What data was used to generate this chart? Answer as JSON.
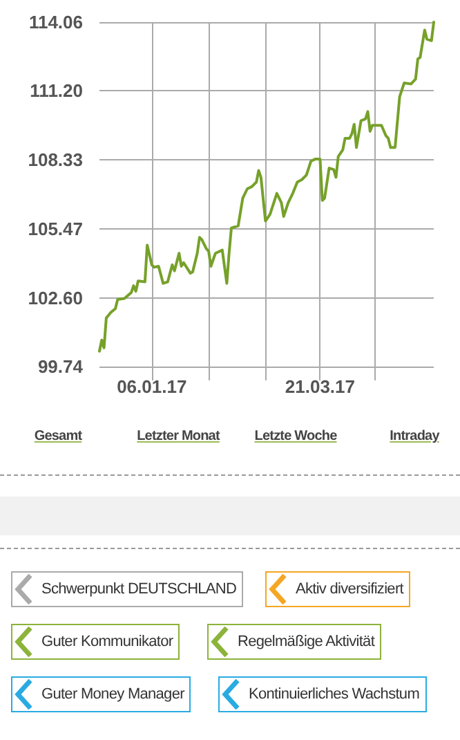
{
  "chart_data": [
    {
      "type": "line",
      "color": "#76a12a",
      "x": [
        "2016-12-14",
        "2016-12-15",
        "2016-12-16",
        "2016-12-17",
        "2016-12-19",
        "2016-12-21",
        "2016-12-22",
        "2016-12-25",
        "2016-12-28",
        "2016-12-29",
        "2016-12-30",
        "2016-12-31",
        "2017-01-03",
        "2017-01-04",
        "2017-01-06",
        "2017-01-07",
        "2017-01-09",
        "2017-01-11",
        "2017-01-13",
        "2017-01-15",
        "2017-01-16",
        "2017-01-18",
        "2017-01-19",
        "2017-01-20",
        "2017-01-23",
        "2017-01-24",
        "2017-01-26",
        "2017-01-27",
        "2017-01-28",
        "2017-01-30",
        "2017-01-31",
        "2017-02-01",
        "2017-02-03",
        "2017-02-06",
        "2017-02-08",
        "2017-02-09",
        "2017-02-10",
        "2017-02-13",
        "2017-02-15",
        "2017-02-17",
        "2017-02-19",
        "2017-02-21",
        "2017-02-22",
        "2017-02-23",
        "2017-02-25",
        "2017-02-27",
        "2017-03-02",
        "2017-03-04",
        "2017-03-05",
        "2017-03-07",
        "2017-03-09",
        "2017-03-11",
        "2017-03-13",
        "2017-03-15",
        "2017-03-17",
        "2017-03-19",
        "2017-03-21",
        "2017-03-22",
        "2017-03-23",
        "2017-03-25",
        "2017-03-27",
        "2017-03-28",
        "2017-03-29",
        "2017-03-31",
        "2017-04-01",
        "2017-04-03",
        "2017-04-04",
        "2017-04-05",
        "2017-04-06",
        "2017-04-08",
        "2017-04-10",
        "2017-04-11",
        "2017-04-12",
        "2017-04-13",
        "2017-04-17",
        "2017-04-19",
        "2017-04-20",
        "2017-04-21",
        "2017-04-23",
        "2017-04-25",
        "2017-04-27",
        "2017-04-30",
        "2017-05-02",
        "2017-05-03",
        "2017-05-04",
        "2017-05-05",
        "2017-05-06",
        "2017-05-07",
        "2017-05-09",
        "2017-05-10"
      ],
      "values": [
        100.38,
        100.84,
        100.52,
        101.76,
        101.99,
        102.15,
        102.53,
        102.57,
        102.82,
        103.1,
        102.87,
        103.3,
        103.26,
        104.79,
        103.97,
        103.87,
        103.91,
        103.2,
        103.26,
        103.97,
        103.72,
        104.45,
        103.91,
        104.06,
        103.62,
        103.68,
        104.45,
        105.11,
        105.02,
        104.64,
        104.54,
        103.91,
        104.45,
        104.58,
        103.2,
        104.45,
        105.5,
        105.59,
        106.74,
        107.13,
        107.22,
        107.41,
        107.89,
        107.61,
        105.79,
        106.07,
        106.94,
        106.55,
        105.98,
        106.55,
        106.94,
        107.41,
        107.51,
        107.7,
        108.28,
        108.37,
        108.37,
        106.65,
        106.74,
        107.99,
        107.93,
        107.61,
        108.47,
        108.75,
        109.23,
        109.23,
        109.42,
        109.81,
        108.85,
        109.96,
        110.04,
        110.34,
        109.52,
        109.77,
        109.77,
        109.33,
        109.23,
        108.85,
        108.85,
        110.96,
        111.53,
        111.49,
        111.69,
        112.53,
        112.59,
        113.16,
        113.73,
        113.35,
        113.29,
        114.06
      ],
      "xlim": [
        "2016-12-14",
        "2017-05-10"
      ],
      "xticks": [
        {
          "value": "2017-01-06",
          "label": "06.01.17"
        },
        {
          "value": "2017-01-31",
          "label": null
        },
        {
          "value": "2017-02-25",
          "label": null
        },
        {
          "value": "2017-03-21",
          "label": "21.03.17"
        },
        {
          "value": "2017-04-14",
          "label": null
        }
      ],
      "ylim": [
        99.74,
        114.06
      ],
      "yticks": [
        {
          "value": 99.74,
          "label": "99.74"
        },
        {
          "value": 102.6,
          "label": "102.60"
        },
        {
          "value": 105.47,
          "label": "105.47"
        },
        {
          "value": 108.33,
          "label": "108.33"
        },
        {
          "value": 111.2,
          "label": "111.20"
        },
        {
          "value": 114.06,
          "label": "114.06"
        }
      ],
      "grid": true,
      "marker": "none",
      "line_style": "solid",
      "annotations": [
        "Gesamt",
        "Letzter Monat",
        "Letzte Woche",
        "Intraday",
        "Schwerpunkt DEUTSCHLAND",
        "Aktiv diversifiziert",
        "Guter Kommunikator",
        "Regelmäßige Aktivität",
        "Guter Money Manager",
        "Kontinuierliches Wachstum"
      ]
    }
  ]
}
